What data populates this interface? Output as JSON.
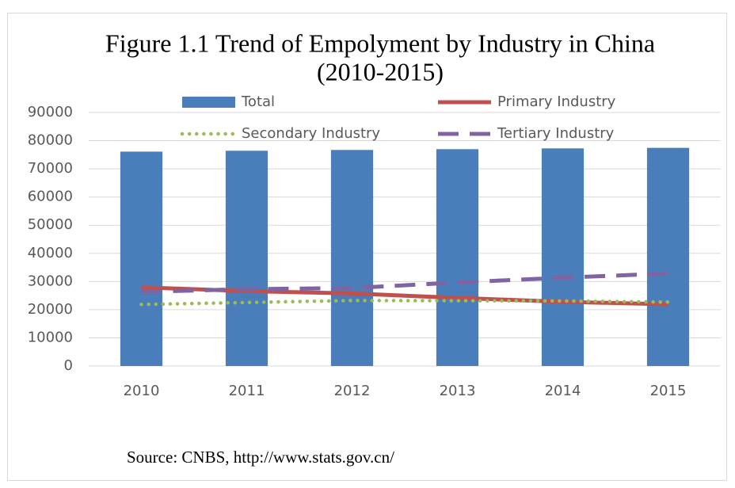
{
  "chart_data": {
    "type": "bar",
    "title": [
      "Figure 1.1 Trend of Empolyment by Industry in China",
      "(2010-2015)"
    ],
    "categories": [
      "2010",
      "2011",
      "2012",
      "2013",
      "2014",
      "2015"
    ],
    "series": [
      {
        "name": "Total",
        "type": "bar",
        "color": "#4a7ebb",
        "values": [
          76105,
          76420,
          76704,
          76977,
          77253,
          77451
        ]
      },
      {
        "name": "Primary Industry",
        "type": "line",
        "dash": "solid",
        "color": "#c0504d",
        "values": [
          27931,
          26594,
          25773,
          24171,
          22790,
          21919
        ]
      },
      {
        "name": "Secondary Industry",
        "type": "line",
        "dash": "dotted",
        "color": "#9bbb59",
        "values": [
          21842,
          22544,
          23241,
          23170,
          23099,
          22693
        ]
      },
      {
        "name": "Tertiary Industry",
        "type": "line",
        "dash": "dashed",
        "color": "#8064a2",
        "values": [
          26332,
          27282,
          27690,
          29636,
          31364,
          32839
        ]
      }
    ],
    "ylim": [
      0,
      90000
    ],
    "yticks": [
      0,
      10000,
      20000,
      30000,
      40000,
      50000,
      60000,
      70000,
      80000,
      90000
    ],
    "grid": true,
    "source": "Source: CNBS,  http://www.stats.gov.cn/"
  }
}
